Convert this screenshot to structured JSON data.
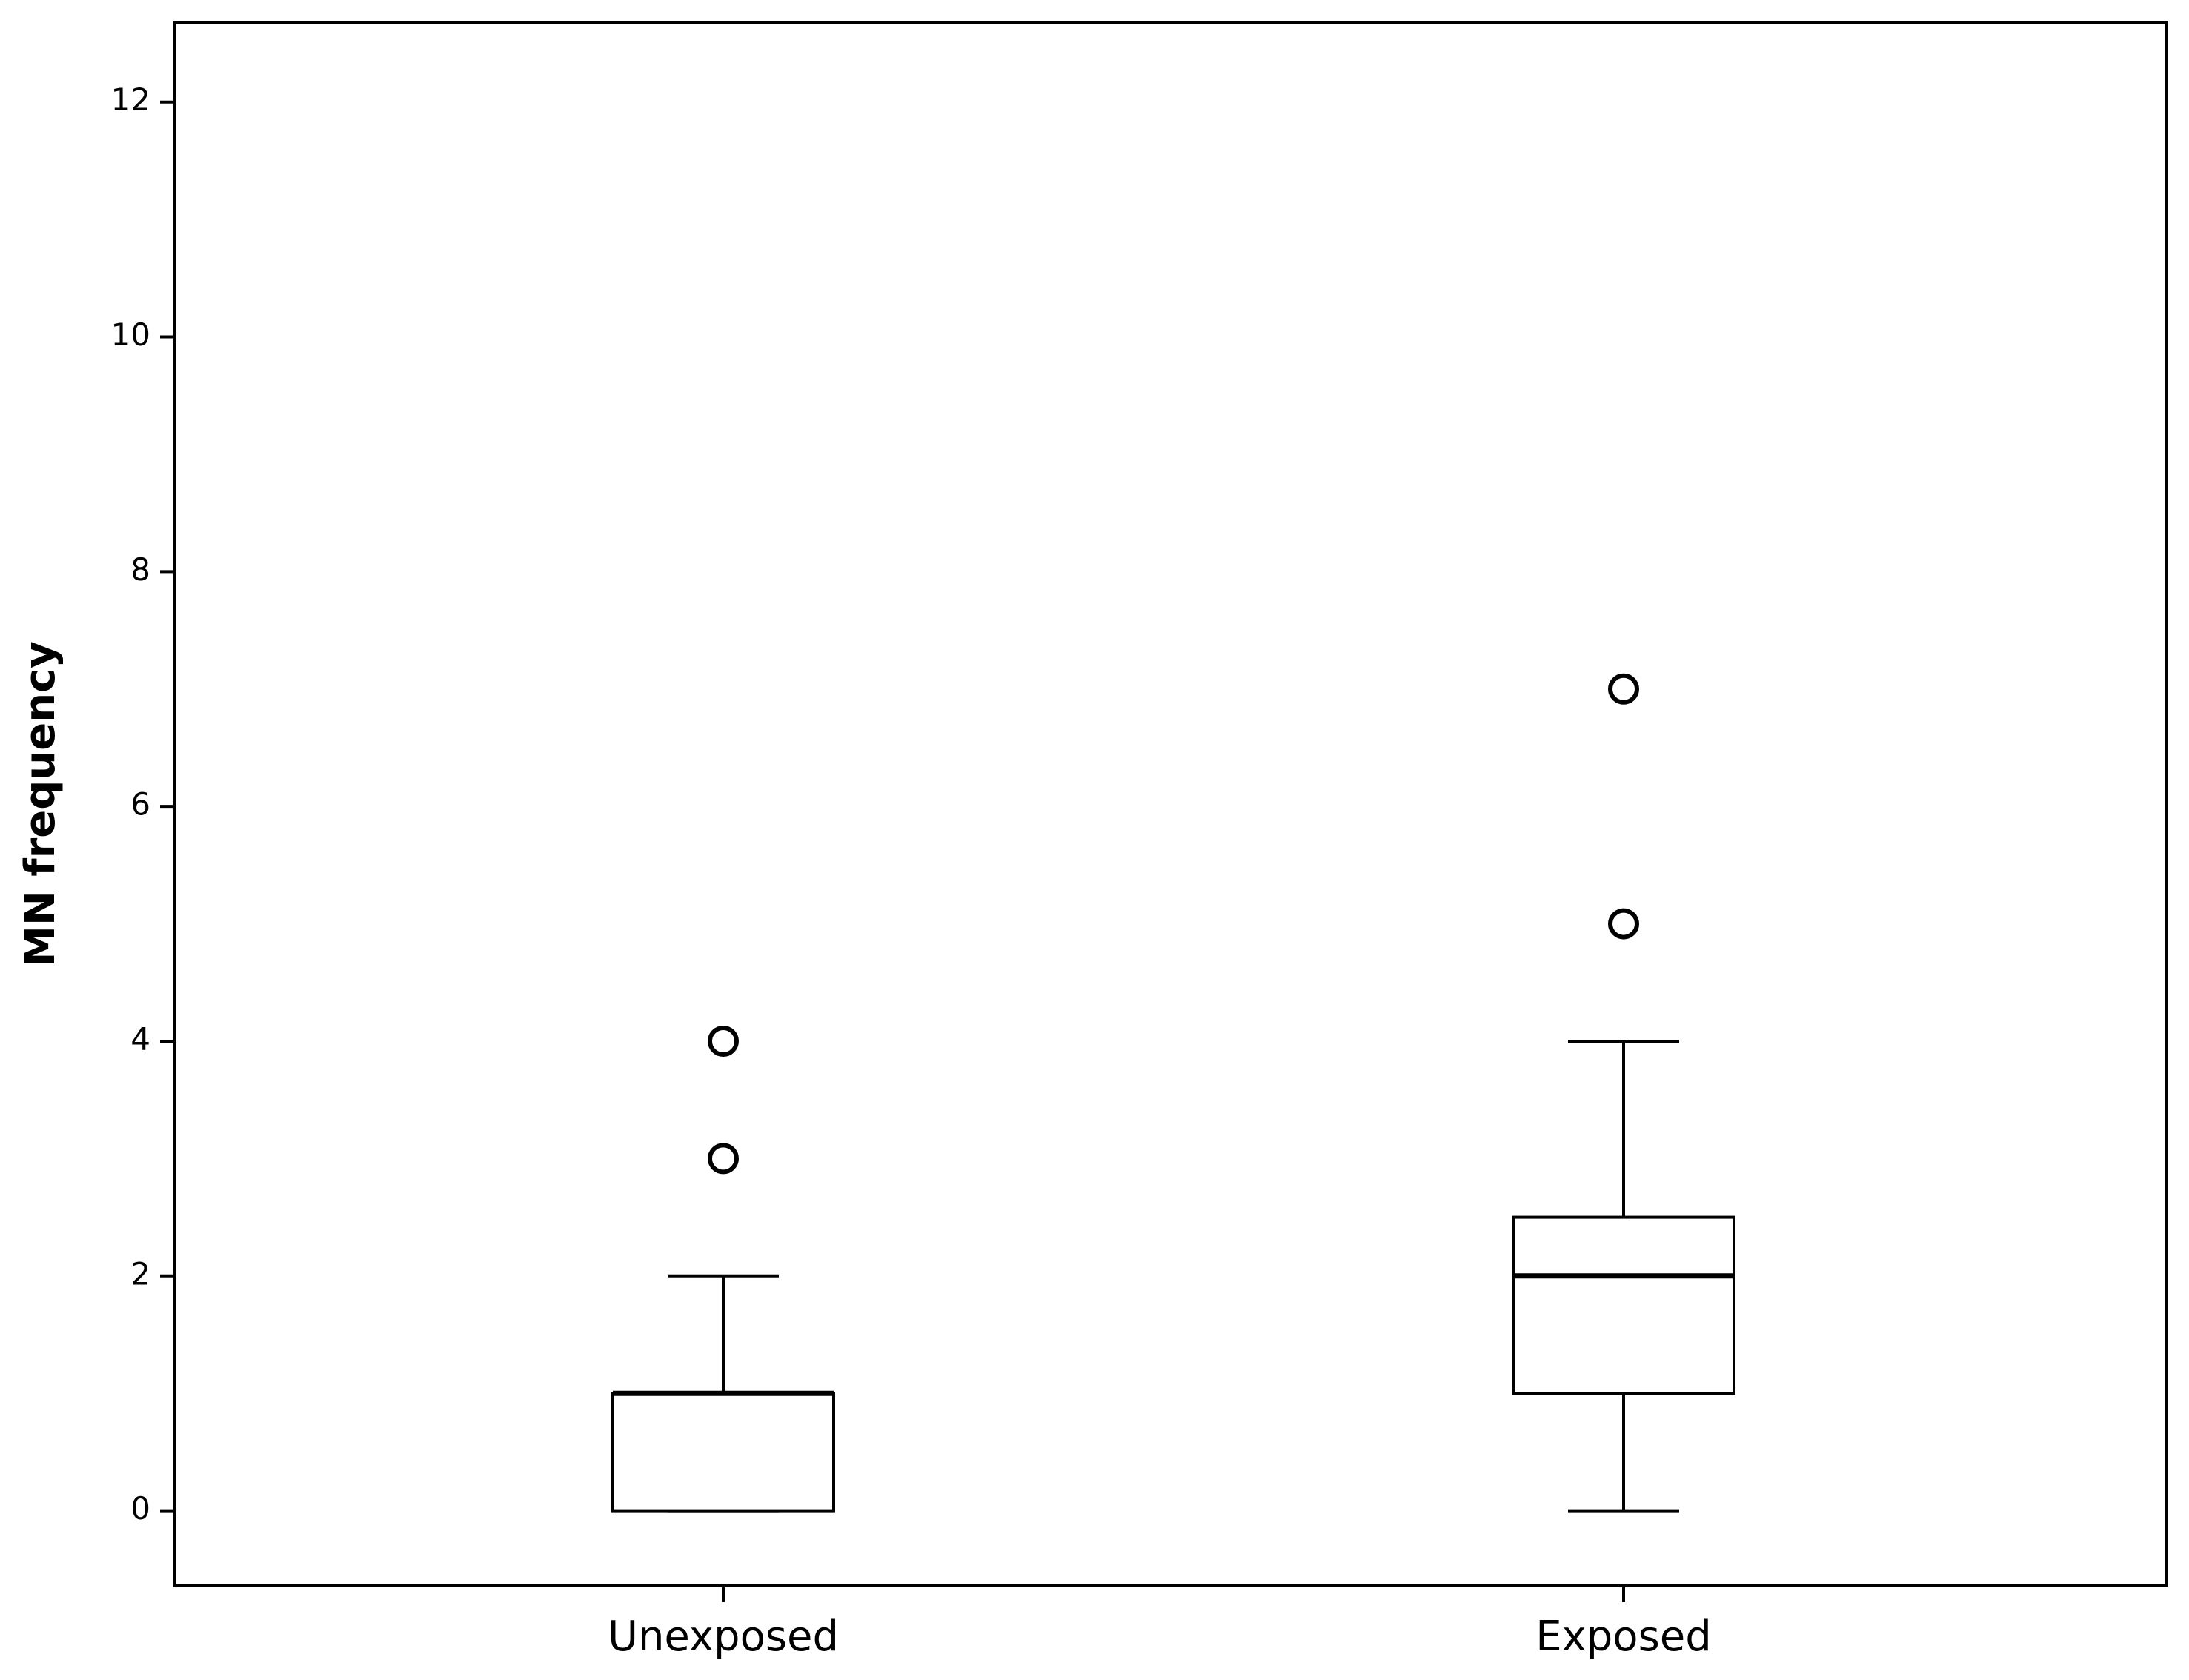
{
  "chart_data": {
    "type": "box",
    "y_label": "MN frequency",
    "categories": [
      "Unexposed",
      "Exposed"
    ],
    "boxes": [
      {
        "min": 0,
        "q1": 0,
        "median": 1,
        "q3": 1,
        "max": 2,
        "outliers": [
          3,
          4
        ]
      },
      {
        "min": 0,
        "q1": 1,
        "median": 2,
        "q3": 2.5,
        "max": 4,
        "outliers": [
          5,
          7
        ]
      }
    ],
    "color": "#000000",
    "ylim": [
      -0.64,
      12.68
    ],
    "yticks": [
      0,
      2,
      4,
      6,
      8,
      10,
      12
    ],
    "grid": false
  }
}
